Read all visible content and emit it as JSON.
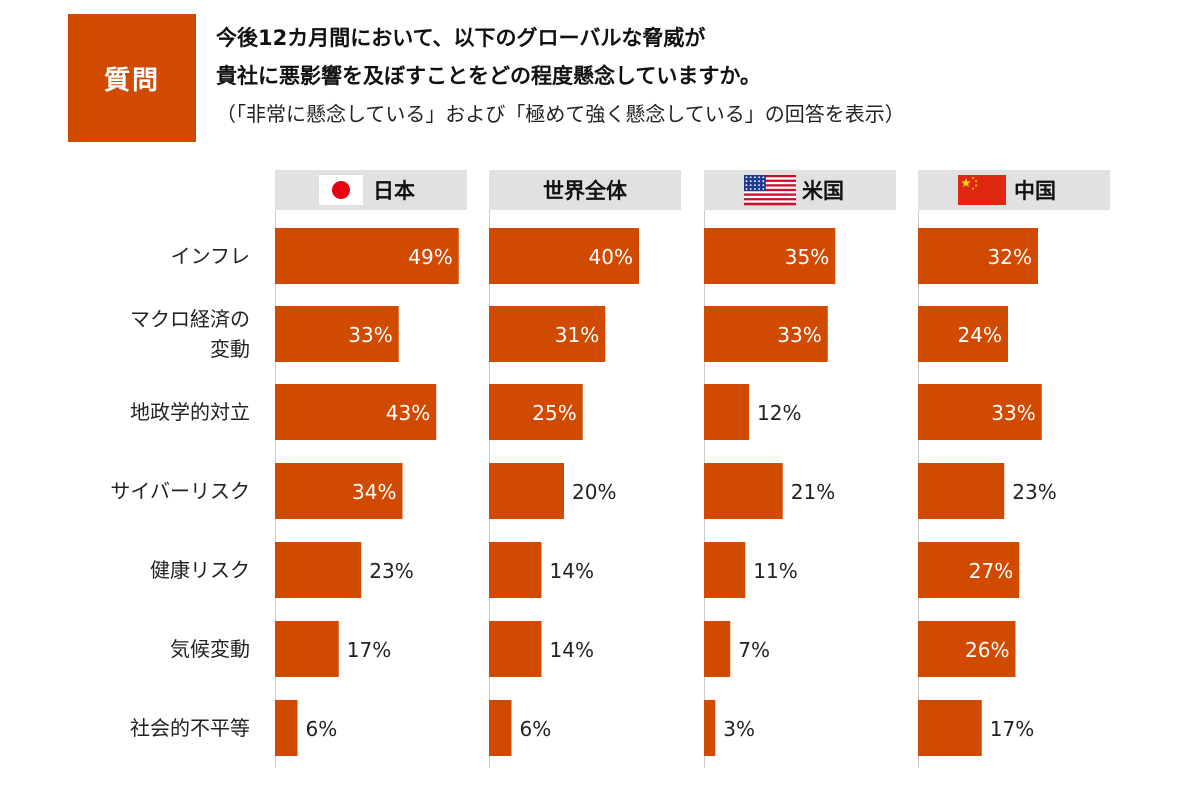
{
  "question": {
    "badge": "質問",
    "line1": "今後12カ月間において、以下のグローバルな脅威が",
    "line2": "貴社に悪影響を及ぼすことをどの程度懸念していますか。",
    "line3": "（「非常に懸念している」および「極めて強く懸念している」の回答を表示）"
  },
  "colors": {
    "bar": "#d04a02",
    "header_bg": "#e1e1e1",
    "axis": "#cccccc",
    "label_inside": "#ffffff",
    "label_outside": "#222222"
  },
  "chart_data": {
    "type": "bar",
    "orientation": "horizontal",
    "unit": "%",
    "categories": [
      "インフレ",
      "マクロ経済の\n変動",
      "地政学的対立",
      "サイバーリスク",
      "健康リスク",
      "気候変動",
      "社会的不平等"
    ],
    "panels": [
      {
        "name": "日本",
        "icon": "japan-flag-icon",
        "values": [
          49,
          33,
          43,
          34,
          23,
          17,
          6
        ]
      },
      {
        "name": "世界全体",
        "icon": "",
        "values": [
          40,
          31,
          25,
          20,
          14,
          14,
          6
        ]
      },
      {
        "name": "米国",
        "icon": "us-flag-icon",
        "values": [
          35,
          33,
          12,
          21,
          11,
          7,
          3
        ]
      },
      {
        "name": "中国",
        "icon": "china-flag-icon",
        "values": [
          32,
          24,
          33,
          23,
          27,
          26,
          17
        ]
      }
    ],
    "xlim": [
      0,
      50
    ],
    "grid": false,
    "legend": "none"
  }
}
